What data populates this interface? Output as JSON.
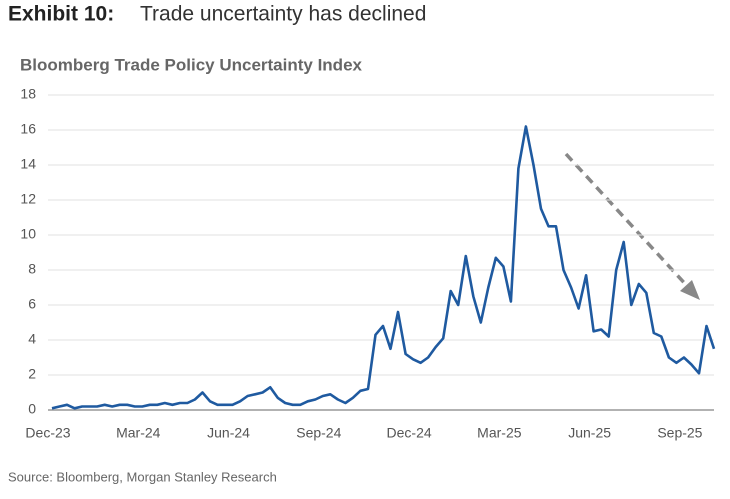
{
  "header": {
    "exhibit": "Exhibit 10:",
    "headline": "Trade uncertainty has declined"
  },
  "chart_data": {
    "type": "line",
    "title": "Bloomberg Trade Policy Uncertainty Index",
    "categories": [
      "Dec-23",
      null,
      null,
      null,
      null,
      null,
      null,
      null,
      null,
      null,
      null,
      null,
      "Mar-24",
      null,
      null,
      null,
      null,
      null,
      null,
      null,
      null,
      null,
      null,
      null,
      "Jun-24",
      null,
      null,
      null,
      null,
      null,
      null,
      null,
      null,
      null,
      null,
      null,
      "Sep-24",
      null,
      null,
      null,
      null,
      null,
      null,
      null,
      null,
      null,
      null,
      null,
      "Dec-24",
      null,
      null,
      null,
      null,
      null,
      null,
      null,
      null,
      null,
      null,
      null,
      "Mar-25",
      null,
      null,
      null,
      null,
      null,
      null,
      null,
      null,
      null,
      null,
      null,
      "Jun-25",
      null,
      null,
      null,
      null,
      null,
      null,
      null,
      null,
      null,
      null,
      null,
      "Sep-25",
      null,
      null,
      null,
      null
    ],
    "values": [
      0.1,
      0.2,
      0.3,
      0.1,
      0.2,
      0.2,
      0.2,
      0.3,
      0.2,
      0.3,
      0.3,
      0.2,
      0.2,
      0.3,
      0.3,
      0.4,
      0.3,
      0.4,
      0.4,
      0.6,
      1.0,
      0.5,
      0.3,
      0.3,
      0.3,
      0.5,
      0.8,
      0.9,
      1.0,
      1.3,
      0.7,
      0.4,
      0.3,
      0.3,
      0.5,
      0.6,
      0.8,
      0.9,
      0.6,
      0.4,
      0.7,
      1.1,
      1.2,
      4.3,
      4.8,
      3.5,
      5.6,
      3.2,
      2.9,
      2.7,
      3.0,
      3.6,
      4.1,
      6.8,
      6.0,
      8.8,
      6.5,
      5.0,
      7.0,
      8.7,
      8.2,
      6.2,
      13.8,
      16.2,
      14.0,
      11.5,
      10.5,
      10.5,
      8.0,
      7.0,
      5.8,
      7.7,
      4.5,
      4.6,
      4.2,
      8.0,
      9.6,
      6.0,
      7.2,
      6.7,
      4.4,
      4.2,
      3.0,
      2.7,
      3.0,
      2.6,
      2.1,
      4.8,
      3.5
    ],
    "color": "#1f5aa0",
    "ylim": [
      0,
      18
    ],
    "yticks": [
      0,
      2,
      4,
      6,
      8,
      10,
      12,
      14,
      16,
      18
    ],
    "grid": true,
    "source": "Source: Bloomberg, Morgan Stanley Research"
  }
}
